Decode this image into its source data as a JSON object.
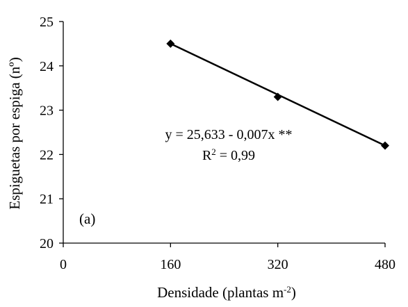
{
  "chart_data": {
    "type": "scatter",
    "panel_label": "(a)",
    "xlabel": {
      "main": "Densidade (plantas m",
      "sup": "-2",
      "close": ")"
    },
    "ylabel": "Espiguetas por espiga (nº)",
    "xlim": [
      0,
      480
    ],
    "ylim": [
      20,
      25
    ],
    "xticks": [
      0,
      160,
      320,
      480
    ],
    "yticks": [
      20,
      21,
      22,
      23,
      24,
      25
    ],
    "xtick_labels": [
      "0",
      "160",
      "320",
      "480"
    ],
    "ytick_labels": [
      "20",
      "21",
      "22",
      "23",
      "24",
      "25"
    ],
    "points": {
      "x": [
        160,
        320,
        480
      ],
      "y": [
        24.5,
        23.3,
        22.2
      ]
    },
    "fit_line": {
      "x": [
        160,
        480
      ],
      "y": [
        24.5,
        22.2
      ]
    },
    "equation": "y = 25,633 - 0,007x **",
    "r2": {
      "main": "R",
      "sup": "2",
      "rest": " = 0,99"
    },
    "marker_color": "#000000",
    "line_color": "#000000",
    "grid": false
  }
}
